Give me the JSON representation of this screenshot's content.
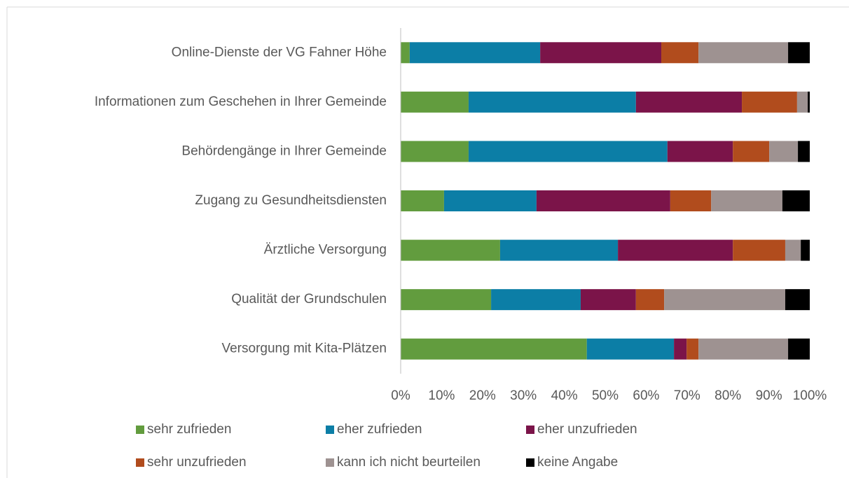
{
  "chart_data": {
    "type": "stacked_barh",
    "categories": [
      "Online-Dienste der VG Fahner Höhe",
      "Informationen zum Geschehen in Ihrer Gemeinde",
      "Behördengänge in Ihrer Gemeinde",
      "Zugang zu Gesundheitsdiensten",
      "Ärztliche Versorgung",
      "Qualität der Grundschulen",
      "Versorgung mit Kita-Plätzen"
    ],
    "series": [
      {
        "name": "sehr zufrieden",
        "color": "#629c3e",
        "values": [
          2.2,
          16.6,
          16.6,
          10.6,
          24.3,
          22.1,
          45.5
        ]
      },
      {
        "name": "eher zufrieden",
        "color": "#0c7ea6",
        "values": [
          31.9,
          40.9,
          48.6,
          22.6,
          28.8,
          21.9,
          21.3
        ]
      },
      {
        "name": "eher unzufrieden",
        "color": "#7b1449",
        "values": [
          29.6,
          25.9,
          16.0,
          32.7,
          28.1,
          13.5,
          3.1
        ]
      },
      {
        "name": "sehr unzufrieden",
        "color": "#b14c1d",
        "values": [
          9.1,
          13.5,
          8.9,
          10.0,
          12.8,
          6.9,
          2.9
        ]
      },
      {
        "name": "kann ich nicht beurteilen",
        "color": "#9e9291",
        "values": [
          21.9,
          2.6,
          7.0,
          17.4,
          3.8,
          29.6,
          21.9
        ]
      },
      {
        "name": "keine Angabe",
        "color": "#000000",
        "values": [
          5.3,
          0.5,
          2.9,
          6.7,
          2.2,
          6.0,
          5.3
        ]
      }
    ],
    "xlim": [
      0,
      100
    ],
    "xticks": [
      {
        "value": 0,
        "label": "0%"
      },
      {
        "value": 10,
        "label": "10%"
      },
      {
        "value": 20,
        "label": "20%"
      },
      {
        "value": 30,
        "label": "30%"
      },
      {
        "value": 40,
        "label": "40%"
      },
      {
        "value": 50,
        "label": "50%"
      },
      {
        "value": 60,
        "label": "60%"
      },
      {
        "value": 70,
        "label": "70%"
      },
      {
        "value": 80,
        "label": "80%"
      },
      {
        "value": 90,
        "label": "90%"
      },
      {
        "value": 100,
        "label": "100%"
      }
    ],
    "legend": "bottom"
  }
}
